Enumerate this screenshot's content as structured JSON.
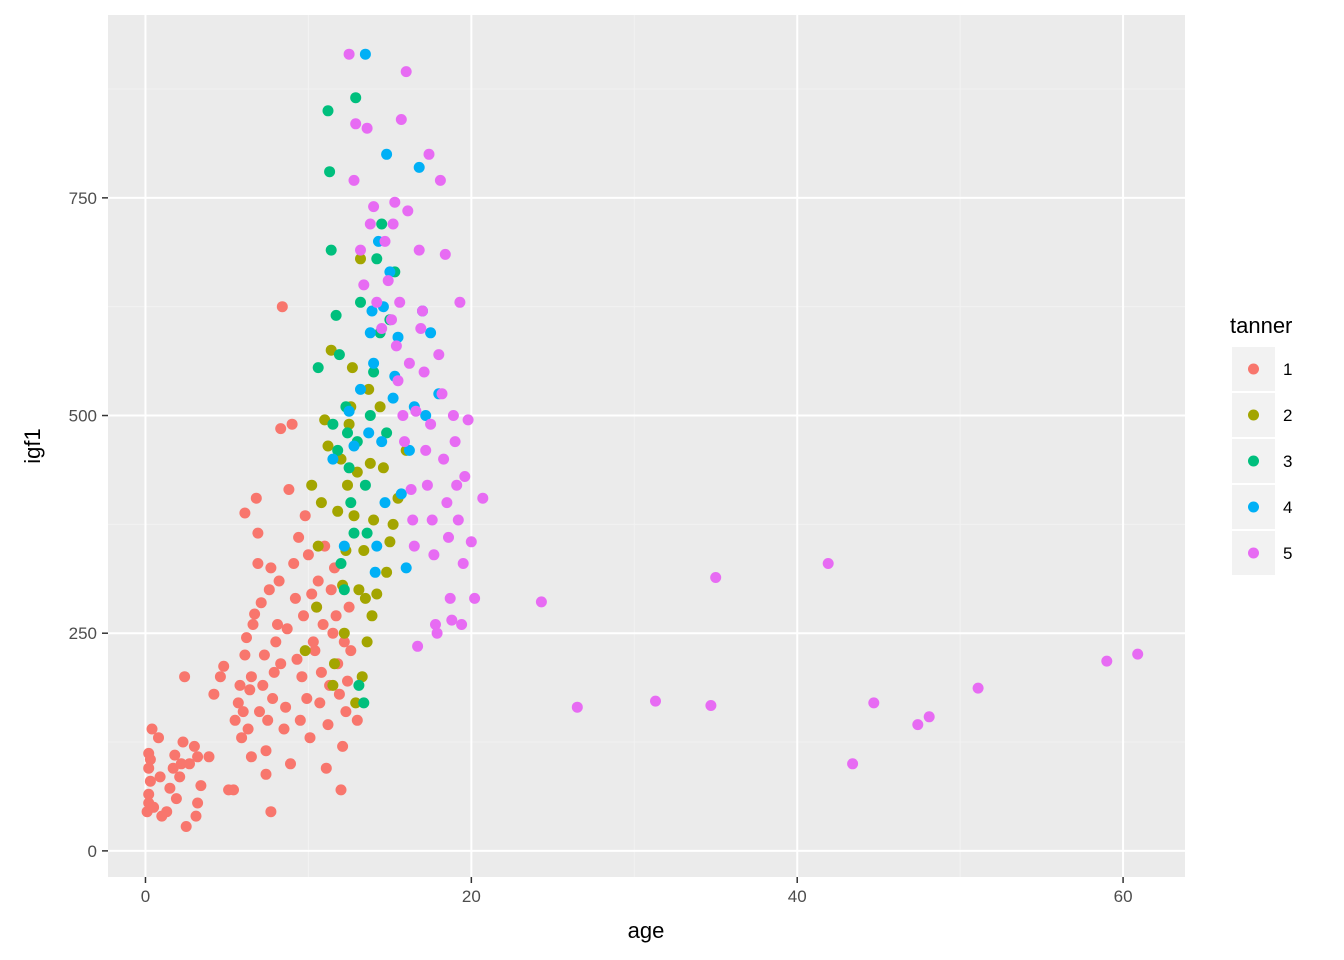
{
  "chart_data": {
    "type": "scatter",
    "title": "",
    "xlabel": "age",
    "ylabel": "igf1",
    "xlim": [
      -2.3,
      63.8
    ],
    "ylim": [
      -30,
      960
    ],
    "x_ticks": [
      0,
      20,
      40,
      60
    ],
    "y_ticks": [
      0,
      250,
      500,
      750
    ],
    "x_tick_labels": [
      "0",
      "20",
      "40",
      "60"
    ],
    "y_tick_labels": [
      "0",
      "250",
      "500",
      "750"
    ],
    "grid": true,
    "legend": {
      "title": "tanner",
      "position": "right"
    },
    "series": [
      {
        "name": "1",
        "color": "#F8766D",
        "points": [
          [
            0.1,
            45
          ],
          [
            0.2,
            55
          ],
          [
            0.2,
            65
          ],
          [
            0.3,
            80
          ],
          [
            0.2,
            95
          ],
          [
            0.3,
            105
          ],
          [
            0.2,
            112
          ],
          [
            0.4,
            140
          ],
          [
            0.8,
            130
          ],
          [
            0.5,
            50
          ],
          [
            1.0,
            40
          ],
          [
            0.9,
            85
          ],
          [
            1.3,
            45
          ],
          [
            1.5,
            72
          ],
          [
            1.7,
            95
          ],
          [
            1.8,
            110
          ],
          [
            1.9,
            60
          ],
          [
            2.1,
            85
          ],
          [
            2.2,
            100
          ],
          [
            2.3,
            125
          ],
          [
            2.4,
            200
          ],
          [
            2.5,
            28
          ],
          [
            2.7,
            100
          ],
          [
            3.0,
            120
          ],
          [
            3.2,
            108
          ],
          [
            3.1,
            40
          ],
          [
            3.2,
            55
          ],
          [
            3.4,
            75
          ],
          [
            3.9,
            108
          ],
          [
            4.2,
            180
          ],
          [
            4.6,
            200
          ],
          [
            4.8,
            212
          ],
          [
            5.1,
            70
          ],
          [
            5.4,
            70
          ],
          [
            5.5,
            150
          ],
          [
            5.7,
            170
          ],
          [
            5.8,
            190
          ],
          [
            5.9,
            130
          ],
          [
            6.0,
            160
          ],
          [
            6.1,
            225
          ],
          [
            6.2,
            245
          ],
          [
            6.1,
            388
          ],
          [
            6.3,
            140
          ],
          [
            6.4,
            185
          ],
          [
            6.5,
            200
          ],
          [
            6.5,
            108
          ],
          [
            6.6,
            260
          ],
          [
            6.7,
            272
          ],
          [
            6.8,
            405
          ],
          [
            6.9,
            365
          ],
          [
            6.9,
            330
          ],
          [
            7.0,
            160
          ],
          [
            7.1,
            285
          ],
          [
            7.2,
            190
          ],
          [
            7.3,
            225
          ],
          [
            7.4,
            88
          ],
          [
            7.4,
            115
          ],
          [
            7.5,
            150
          ],
          [
            7.6,
            300
          ],
          [
            7.7,
            45
          ],
          [
            7.7,
            325
          ],
          [
            7.8,
            175
          ],
          [
            7.9,
            205
          ],
          [
            8.0,
            240
          ],
          [
            8.1,
            260
          ],
          [
            8.2,
            310
          ],
          [
            8.3,
            215
          ],
          [
            8.3,
            485
          ],
          [
            8.4,
            625
          ],
          [
            8.5,
            140
          ],
          [
            8.6,
            165
          ],
          [
            8.7,
            255
          ],
          [
            8.8,
            415
          ],
          [
            8.9,
            100
          ],
          [
            9.0,
            490
          ],
          [
            9.1,
            330
          ],
          [
            9.2,
            290
          ],
          [
            9.3,
            220
          ],
          [
            9.4,
            360
          ],
          [
            9.5,
            150
          ],
          [
            9.6,
            200
          ],
          [
            9.7,
            270
          ],
          [
            9.8,
            385
          ],
          [
            9.9,
            175
          ],
          [
            10.0,
            340
          ],
          [
            10.1,
            130
          ],
          [
            10.2,
            295
          ],
          [
            10.3,
            240
          ],
          [
            10.4,
            230
          ],
          [
            10.5,
            280
          ],
          [
            10.6,
            310
          ],
          [
            10.7,
            170
          ],
          [
            10.8,
            205
          ],
          [
            10.9,
            260
          ],
          [
            11.0,
            350
          ],
          [
            11.1,
            95
          ],
          [
            11.2,
            145
          ],
          [
            11.3,
            190
          ],
          [
            11.4,
            300
          ],
          [
            11.5,
            250
          ],
          [
            11.6,
            325
          ],
          [
            11.7,
            270
          ],
          [
            11.8,
            215
          ],
          [
            11.9,
            180
          ],
          [
            12.0,
            70
          ],
          [
            12.1,
            120
          ],
          [
            12.2,
            240
          ],
          [
            12.3,
            160
          ],
          [
            12.4,
            195
          ],
          [
            12.5,
            280
          ],
          [
            12.6,
            230
          ],
          [
            13.0,
            150
          ]
        ]
      },
      {
        "name": "2",
        "color": "#A3A500",
        "points": [
          [
            9.8,
            230
          ],
          [
            10.2,
            420
          ],
          [
            10.5,
            280
          ],
          [
            10.6,
            350
          ],
          [
            10.8,
            400
          ],
          [
            11.0,
            495
          ],
          [
            11.2,
            465
          ],
          [
            11.4,
            575
          ],
          [
            11.5,
            190
          ],
          [
            11.6,
            215
          ],
          [
            11.8,
            390
          ],
          [
            12.0,
            450
          ],
          [
            12.1,
            305
          ],
          [
            12.2,
            250
          ],
          [
            12.3,
            345
          ],
          [
            12.4,
            420
          ],
          [
            12.5,
            490
          ],
          [
            12.6,
            510
          ],
          [
            12.7,
            555
          ],
          [
            12.8,
            385
          ],
          [
            12.9,
            170
          ],
          [
            13.0,
            435
          ],
          [
            13.1,
            300
          ],
          [
            13.2,
            680
          ],
          [
            13.3,
            200
          ],
          [
            13.4,
            345
          ],
          [
            13.5,
            290
          ],
          [
            13.6,
            240
          ],
          [
            13.7,
            530
          ],
          [
            13.8,
            445
          ],
          [
            13.9,
            270
          ],
          [
            14.0,
            380
          ],
          [
            14.2,
            295
          ],
          [
            14.4,
            510
          ],
          [
            14.6,
            440
          ],
          [
            14.8,
            320
          ],
          [
            15.0,
            355
          ],
          [
            15.2,
            375
          ],
          [
            15.5,
            405
          ],
          [
            16.0,
            460
          ]
        ]
      },
      {
        "name": "3",
        "color": "#00BF7D",
        "points": [
          [
            10.6,
            555
          ],
          [
            11.2,
            850
          ],
          [
            11.3,
            780
          ],
          [
            11.4,
            690
          ],
          [
            11.5,
            490
          ],
          [
            11.7,
            615
          ],
          [
            11.8,
            460
          ],
          [
            11.9,
            570
          ],
          [
            12.0,
            330
          ],
          [
            12.2,
            300
          ],
          [
            12.3,
            510
          ],
          [
            12.4,
            480
          ],
          [
            12.5,
            440
          ],
          [
            12.6,
            400
          ],
          [
            12.8,
            365
          ],
          [
            12.9,
            865
          ],
          [
            13.0,
            470
          ],
          [
            13.1,
            190
          ],
          [
            13.2,
            630
          ],
          [
            13.4,
            170
          ],
          [
            13.5,
            420
          ],
          [
            13.6,
            365
          ],
          [
            13.8,
            500
          ],
          [
            14.0,
            550
          ],
          [
            14.2,
            680
          ],
          [
            14.4,
            595
          ],
          [
            14.5,
            720
          ],
          [
            14.8,
            480
          ],
          [
            15.0,
            610
          ],
          [
            15.3,
            665
          ]
        ]
      },
      {
        "name": "4",
        "color": "#00B0F6",
        "points": [
          [
            11.5,
            450
          ],
          [
            12.2,
            350
          ],
          [
            12.5,
            505
          ],
          [
            12.8,
            465
          ],
          [
            13.2,
            530
          ],
          [
            13.5,
            915
          ],
          [
            13.7,
            480
          ],
          [
            13.8,
            595
          ],
          [
            13.9,
            620
          ],
          [
            14.0,
            560
          ],
          [
            14.1,
            320
          ],
          [
            14.2,
            350
          ],
          [
            14.3,
            700
          ],
          [
            14.5,
            470
          ],
          [
            14.6,
            625
          ],
          [
            14.7,
            400
          ],
          [
            14.8,
            800
          ],
          [
            15.0,
            665
          ],
          [
            15.2,
            520
          ],
          [
            15.3,
            545
          ],
          [
            15.5,
            590
          ],
          [
            15.7,
            410
          ],
          [
            16.0,
            325
          ],
          [
            16.2,
            460
          ],
          [
            16.5,
            510
          ],
          [
            16.8,
            785
          ],
          [
            17.0,
            620
          ],
          [
            17.2,
            500
          ],
          [
            17.5,
            595
          ],
          [
            18.0,
            525
          ]
        ]
      },
      {
        "name": "5",
        "color": "#E76BF3",
        "points": [
          [
            12.5,
            915
          ],
          [
            12.8,
            770
          ],
          [
            12.9,
            835
          ],
          [
            13.2,
            690
          ],
          [
            13.4,
            650
          ],
          [
            13.6,
            830
          ],
          [
            13.8,
            720
          ],
          [
            14.0,
            740
          ],
          [
            14.2,
            630
          ],
          [
            14.5,
            600
          ],
          [
            14.7,
            700
          ],
          [
            14.9,
            655
          ],
          [
            15.1,
            610
          ],
          [
            15.2,
            720
          ],
          [
            15.3,
            745
          ],
          [
            15.4,
            580
          ],
          [
            15.5,
            540
          ],
          [
            15.6,
            630
          ],
          [
            15.7,
            840
          ],
          [
            15.8,
            500
          ],
          [
            15.9,
            470
          ],
          [
            16.0,
            895
          ],
          [
            16.1,
            735
          ],
          [
            16.2,
            560
          ],
          [
            16.3,
            415
          ],
          [
            16.4,
            380
          ],
          [
            16.5,
            350
          ],
          [
            16.6,
            505
          ],
          [
            16.7,
            235
          ],
          [
            16.8,
            690
          ],
          [
            16.9,
            600
          ],
          [
            17.0,
            620
          ],
          [
            17.1,
            550
          ],
          [
            17.2,
            460
          ],
          [
            17.3,
            420
          ],
          [
            17.4,
            800
          ],
          [
            17.5,
            490
          ],
          [
            17.6,
            380
          ],
          [
            17.7,
            340
          ],
          [
            17.8,
            260
          ],
          [
            17.9,
            250
          ],
          [
            18.0,
            570
          ],
          [
            18.1,
            770
          ],
          [
            18.2,
            525
          ],
          [
            18.3,
            450
          ],
          [
            18.4,
            685
          ],
          [
            18.5,
            400
          ],
          [
            18.6,
            360
          ],
          [
            18.7,
            290
          ],
          [
            18.8,
            265
          ],
          [
            18.9,
            500
          ],
          [
            19.0,
            470
          ],
          [
            19.1,
            420
          ],
          [
            19.2,
            380
          ],
          [
            19.3,
            630
          ],
          [
            19.4,
            260
          ],
          [
            19.5,
            330
          ],
          [
            19.6,
            430
          ],
          [
            19.8,
            495
          ],
          [
            20.0,
            355
          ],
          [
            20.2,
            290
          ],
          [
            20.7,
            405
          ],
          [
            24.3,
            286
          ],
          [
            26.5,
            165
          ],
          [
            31.3,
            172
          ],
          [
            34.7,
            167
          ],
          [
            35.0,
            314
          ],
          [
            41.9,
            330
          ],
          [
            43.4,
            100
          ],
          [
            44.7,
            170
          ],
          [
            47.4,
            145
          ],
          [
            48.1,
            154
          ],
          [
            51.1,
            187
          ],
          [
            59.0,
            218
          ],
          [
            60.9,
            226
          ]
        ]
      }
    ]
  }
}
